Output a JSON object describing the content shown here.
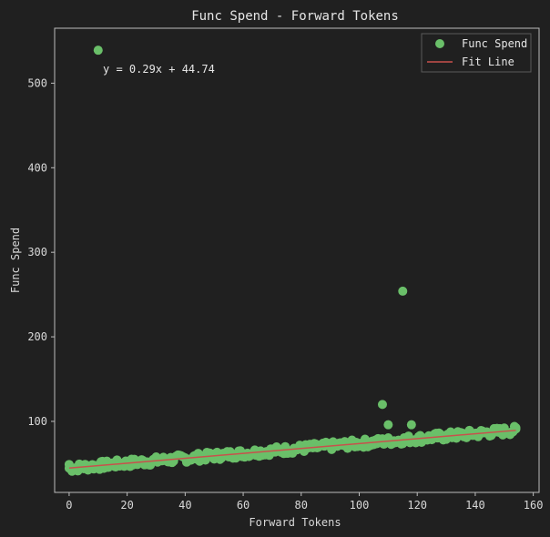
{
  "chart_data": {
    "type": "scatter",
    "title": "Func Spend - Forward Tokens",
    "xlabel": "Forward Tokens",
    "ylabel": "Func Spend",
    "xlim": [
      -5,
      162
    ],
    "ylim": [
      16,
      565
    ],
    "xticks": [
      0,
      20,
      40,
      60,
      80,
      100,
      120,
      140,
      160
    ],
    "yticks": [
      100,
      200,
      300,
      400,
      500
    ],
    "grid": false,
    "legend_position": "top-right",
    "annotation": "y = 0.29x + 44.74",
    "series": [
      {
        "name": "Func Spend",
        "kind": "scatter",
        "color": "#6abf69",
        "main_band": {
          "x_start": 0,
          "x_end": 154,
          "x_step": 0.5,
          "slope": 0.29,
          "intercept": 44.74,
          "spread": 5
        },
        "points": [
          {
            "x": 10,
            "y": 539
          },
          {
            "x": 115,
            "y": 254
          },
          {
            "x": 108,
            "y": 120
          },
          {
            "x": 110,
            "y": 96
          },
          {
            "x": 118,
            "y": 96
          },
          {
            "x": 154,
            "y": 91
          },
          {
            "x": 0,
            "y": 49
          },
          {
            "x": 1,
            "y": 41
          }
        ]
      },
      {
        "name": "Fit Line",
        "kind": "line",
        "color": "#c9504c",
        "slope": 0.29,
        "intercept": 44.74,
        "x_range": [
          0,
          154
        ]
      }
    ]
  }
}
